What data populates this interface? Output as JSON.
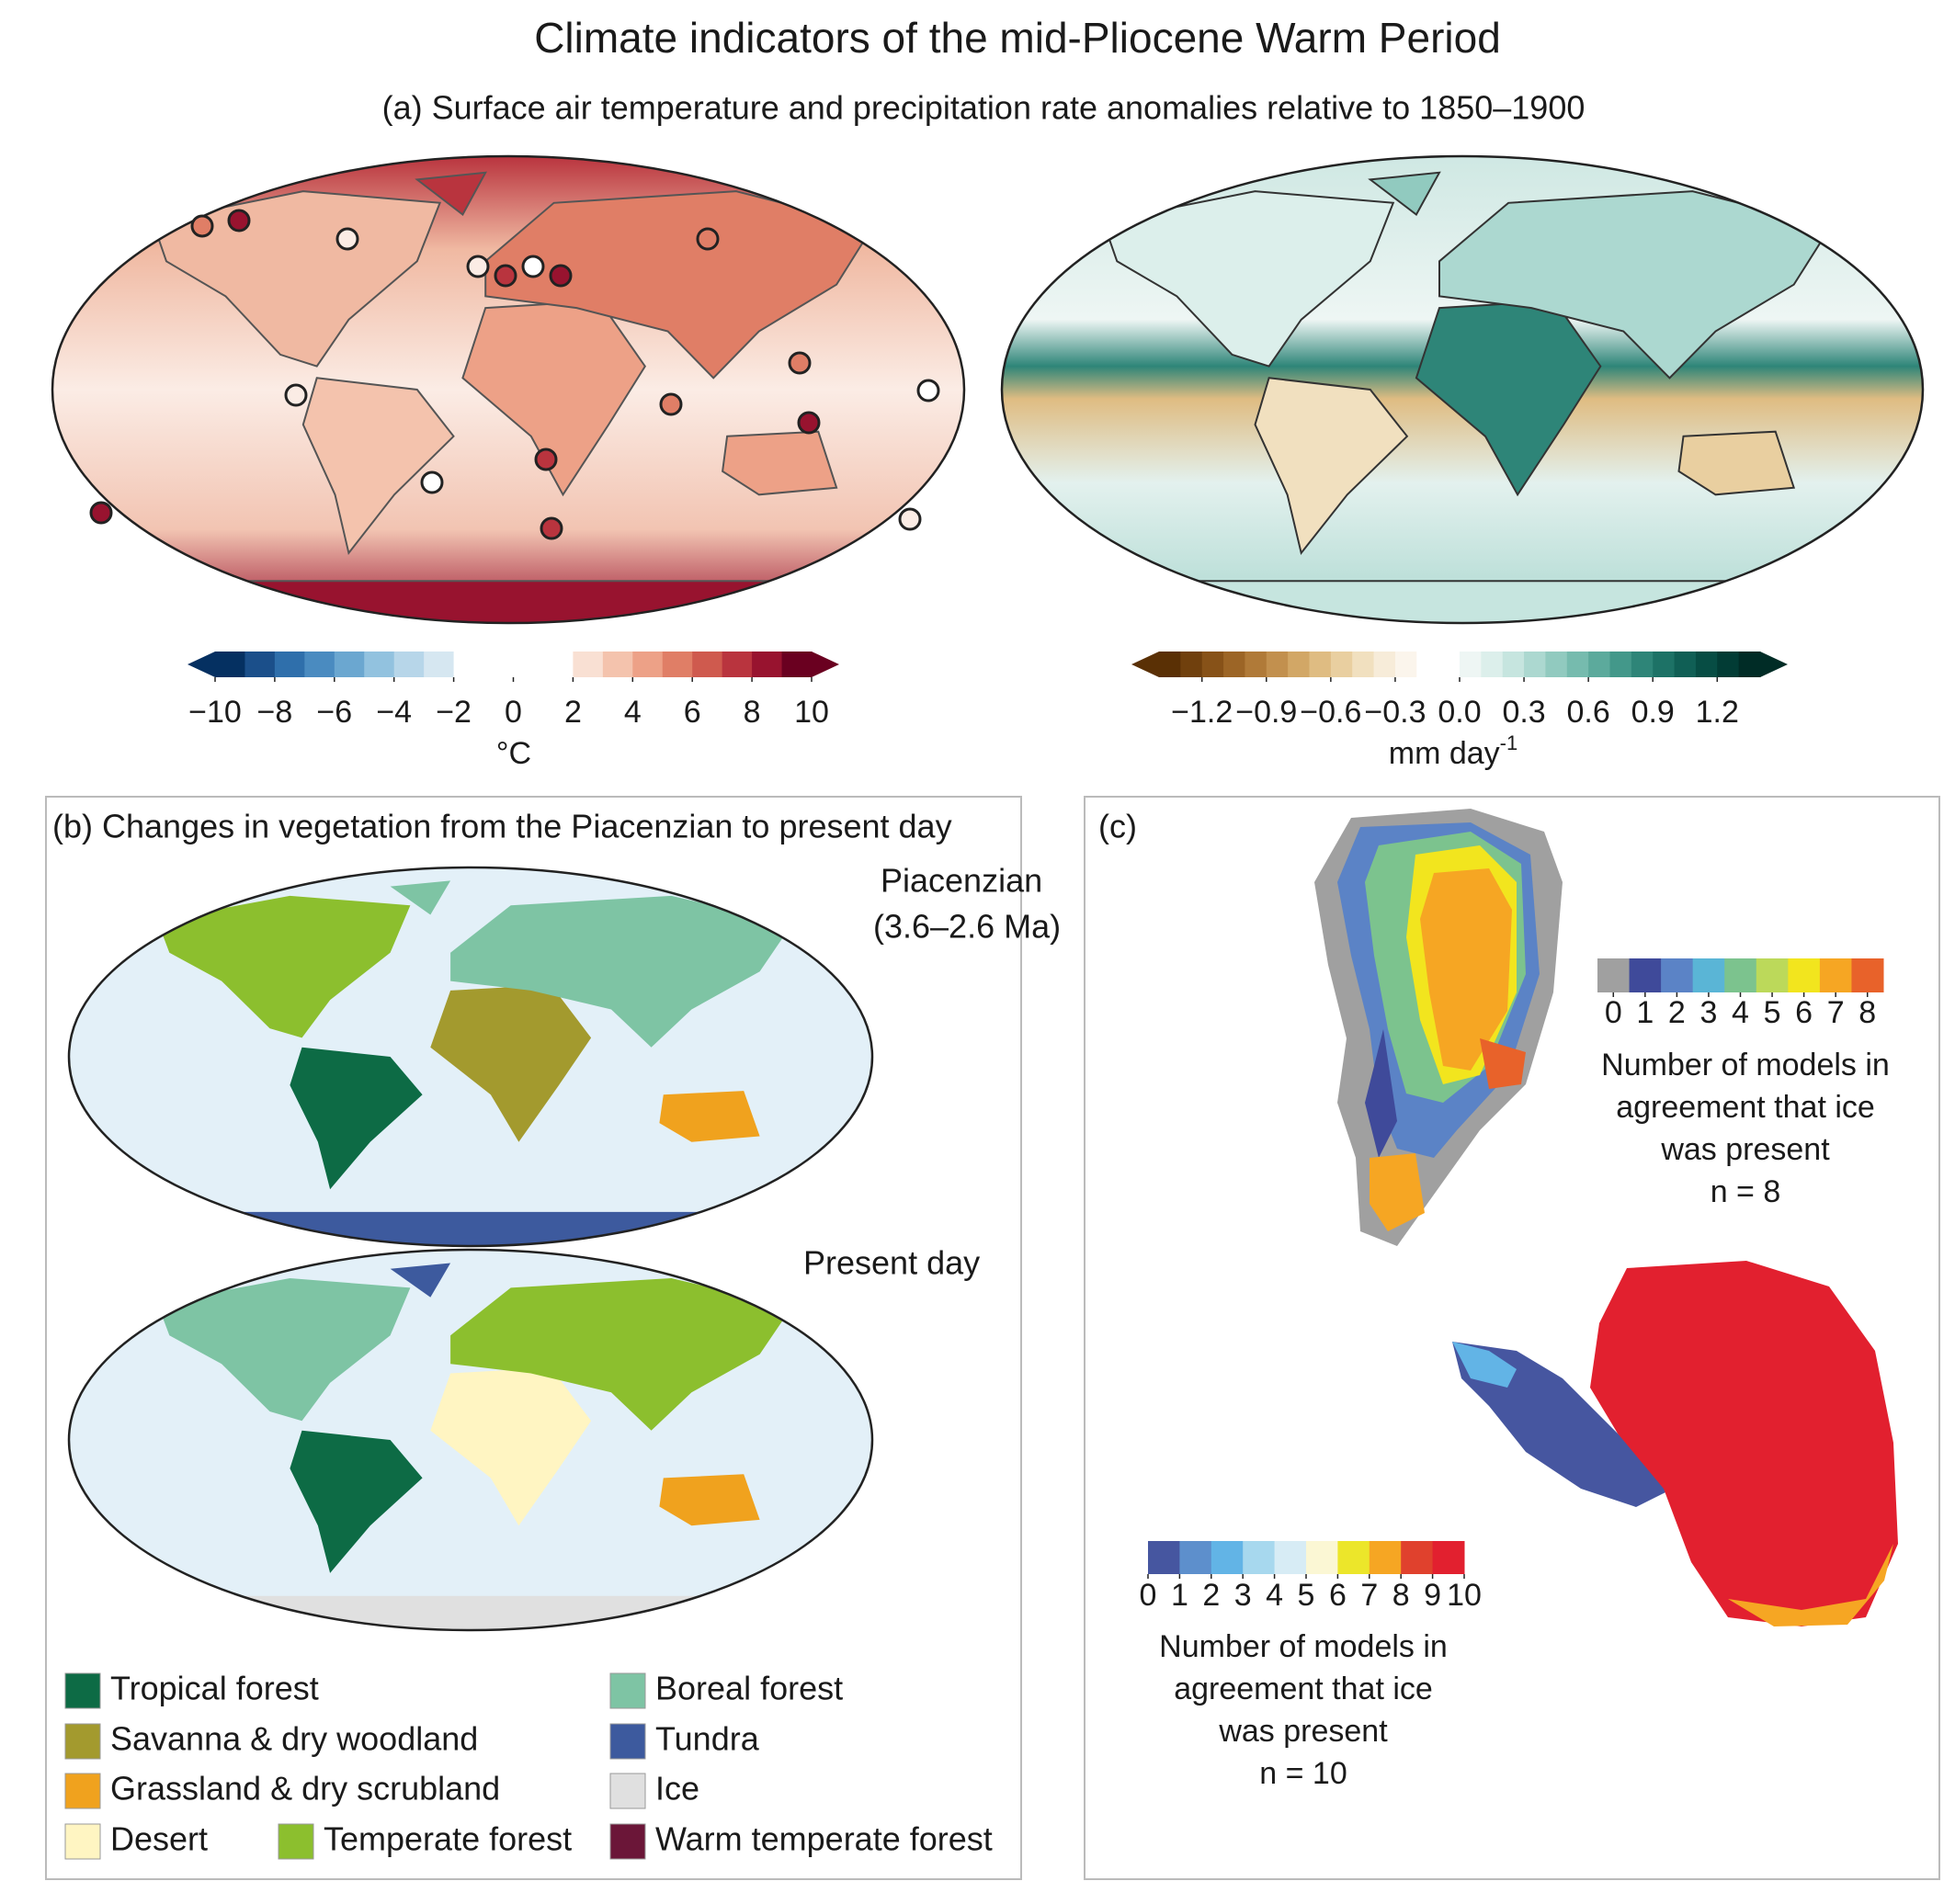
{
  "title": "Climate indicators of the mid-Pliocene Warm Period",
  "panel_a": {
    "subtitle": "(a) Surface air temperature and precipitation rate anomalies relative to 1850–1900",
    "temperature_colorbar": {
      "lim": [
        -10,
        10
      ],
      "ticks": [
        {
          "value": -10,
          "label": "−10"
        },
        {
          "value": -8,
          "label": "−8"
        },
        {
          "value": -6,
          "label": "−6"
        },
        {
          "value": -4,
          "label": "−4"
        },
        {
          "value": -2,
          "label": "−2"
        },
        0,
        2,
        4,
        6,
        8,
        10
      ],
      "unit": "°C",
      "colors": [
        "#053061",
        "#1b4f8a",
        "#2f6fab",
        "#4a8bc0",
        "#6ba7d0",
        "#92c2df",
        "#b7d6e9",
        "#d6e7f1",
        "#ffffff",
        "#ffffff",
        "#ffffff",
        "#ffffff",
        "#f9e0d3",
        "#f4c3ad",
        "#eda187",
        "#e07e66",
        "#cf5a4e",
        "#b9343e",
        "#98132f",
        "#6a0020"
      ]
    },
    "precipitation_colorbar": {
      "lim": [
        -1.4,
        1.4
      ],
      "ticks": [
        {
          "value": -1.2,
          "label": "−1.2"
        },
        {
          "value": -0.9,
          "label": "−0.9"
        },
        {
          "value": -0.6,
          "label": "−0.6"
        },
        {
          "value": -0.3,
          "label": "−0.3"
        },
        {
          "value": 0,
          "label": "0.0"
        },
        0.3,
        0.6,
        0.9,
        1.2
      ],
      "unit": "mm day",
      "unit_superscript": "-1",
      "colors": [
        "#5a3005",
        "#70400d",
        "#875218",
        "#9c6526",
        "#b07a38",
        "#c2904e",
        "#d2a766",
        "#dfbc82",
        "#e9cfa0",
        "#f1e0bf",
        "#f7ecd9",
        "#fbf5ec",
        "#ffffff",
        "#ffffff",
        "#eef6f4",
        "#dcefeb",
        "#c6e5df",
        "#acd8d0",
        "#91cabf",
        "#76bbae",
        "#5caa9c",
        "#43988a",
        "#2e8578",
        "#1d7266",
        "#105f55",
        "#074d44",
        "#023c35",
        "#002c26"
      ]
    }
  },
  "panel_b": {
    "title": "(b) Changes in vegetation from the Piacenzian to present day",
    "map_labels": [
      "Piacenzian",
      "(3.6–2.6 Ma)",
      "Present day"
    ],
    "legend": [
      {
        "name": "Tropical forest",
        "color": "#0d6b45"
      },
      {
        "name": "Savanna & dry woodland",
        "color": "#a39a2e"
      },
      {
        "name": "Grassland & dry scrubland",
        "color": "#f0a21e"
      },
      {
        "name": "Desert",
        "color": "#fff5c2"
      },
      {
        "name": "Temperate forest",
        "color": "#8cbf2e"
      },
      {
        "name": "Boreal forest",
        "color": "#7ec4a4"
      },
      {
        "name": "Tundra",
        "color": "#3d5a9e"
      },
      {
        "name": "Ice",
        "color": "#e0e0e0"
      },
      {
        "name": "Warm temperate forest",
        "color": "#6b1638"
      }
    ]
  },
  "panel_c": {
    "label": "(c)",
    "greenland_colorbar": {
      "lim": [
        -0.5,
        8.5
      ],
      "ticks": [
        0,
        1,
        2,
        3,
        4,
        5,
        6,
        7,
        8
      ],
      "colors": [
        "#a0a0a0",
        "#3f4a9a",
        "#5b83c6",
        "#5ab5d6",
        "#7cc38e",
        "#bcd95a",
        "#f2e51e",
        "#f6a623",
        "#e8622a"
      ],
      "caption": [
        "Number of models in",
        "agreement that ice",
        "was present",
        "n = 8"
      ]
    },
    "antarctica_colorbar": {
      "lim": [
        0,
        10
      ],
      "ticks": [
        0,
        1,
        2,
        3,
        4,
        5,
        6,
        7,
        8,
        9,
        10
      ],
      "colors": [
        "#4656a0",
        "#5d8fcc",
        "#62b4e6",
        "#a7d8ee",
        "#d7ecf5",
        "#fbf7d4",
        "#ece62a",
        "#f6a623",
        "#e0412d",
        "#e2202f"
      ],
      "caption": [
        "Number of models in",
        "agreement that ice",
        "was present",
        "n = 10"
      ]
    }
  }
}
